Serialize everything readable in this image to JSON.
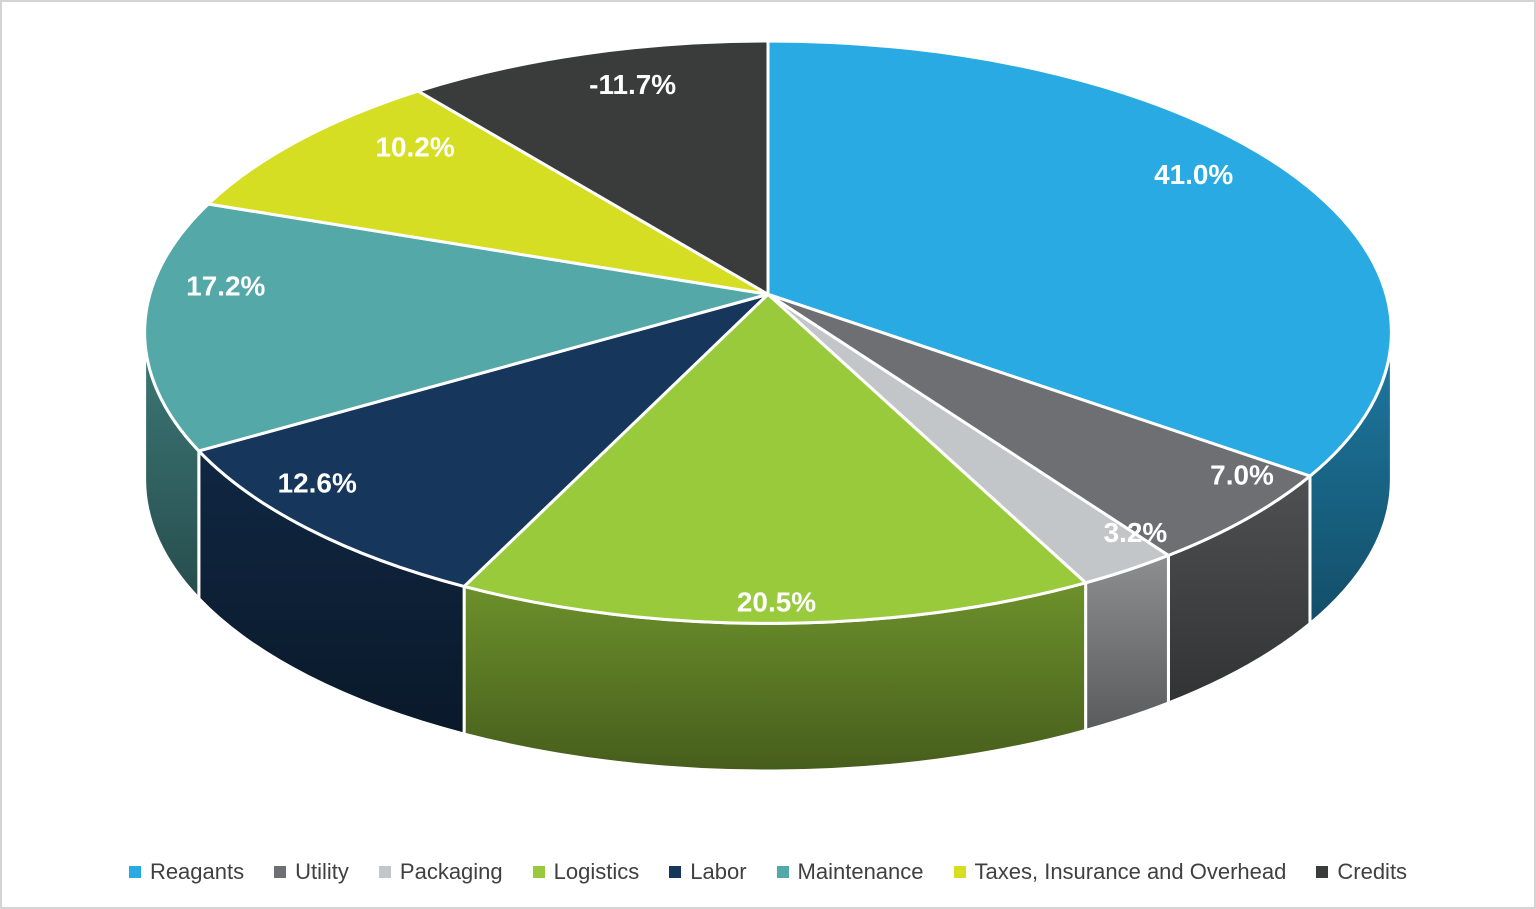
{
  "page": {
    "background": "#FFFFFF",
    "border_color": "#D4D4D4"
  },
  "chart_data": {
    "type": "pie",
    "style": "3d",
    "title": "",
    "start_angle_deg": 0,
    "direction": "clockwise",
    "categories": [
      "Reagants",
      "Utility",
      "Packaging",
      "Logistics",
      "Labor",
      "Maintenance",
      "Taxes, Insurance and Overhead",
      "Credits"
    ],
    "values": [
      41.0,
      7.0,
      3.2,
      20.5,
      12.6,
      17.2,
      10.2,
      -11.7
    ],
    "data_labels": [
      "41.0%",
      "7.0%",
      "3.2%",
      "20.5%",
      "12.6%",
      "17.2%",
      "10.2%",
      "-11.7%"
    ],
    "colors": [
      "#2AAAE2",
      "#6D6F72",
      "#C3C6C8",
      "#98CA3C",
      "#16365C",
      "#55A8A8",
      "#D6DE23",
      "#3A3C3C"
    ],
    "label_color": "#FFFFFF",
    "note": "negative values plotted by absolute magnitude",
    "legend": {
      "position": "bottom",
      "text_color": "#404040",
      "items": [
        "Reagants",
        "Utility",
        "Packaging",
        "Logistics",
        "Labor",
        "Maintenance",
        "Taxes, Insurance and Overhead",
        "Credits"
      ]
    }
  }
}
